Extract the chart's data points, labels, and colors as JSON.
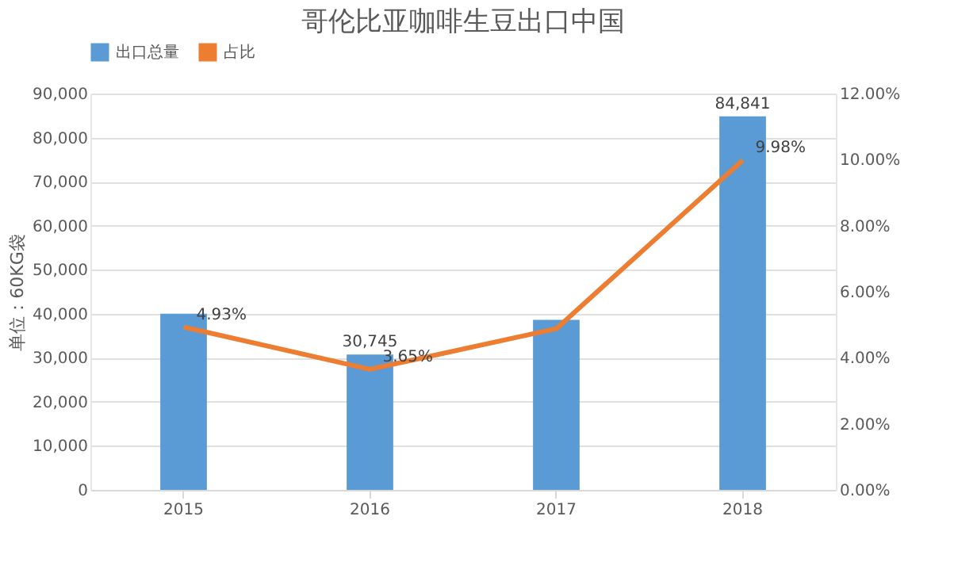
{
  "chart_data": {
    "type": "bar",
    "title": "哥伦比亚咖啡生豆出口中国",
    "ylabel": "单位：60KG袋",
    "categories": [
      "2015",
      "2016",
      "2017",
      "2018"
    ],
    "series": [
      {
        "name": "出口总量",
        "color": "#5b9bd5",
        "values": [
          40000,
          30745,
          38600,
          84841
        ],
        "value_labels": [
          null,
          "30,745",
          null,
          "84,841"
        ]
      },
      {
        "name": "占比",
        "type": "line",
        "axis": "y2",
        "color": "#ed7d31",
        "values": [
          4.93,
          3.65,
          4.88,
          9.98
        ],
        "value_labels": [
          "4.93%",
          "3.65%",
          null,
          "9.98%"
        ]
      }
    ],
    "ylim": [
      0,
      90000
    ],
    "yticks": [
      0,
      {
        "value": 10000,
        "label": "10,000"
      },
      {
        "value": 20000,
        "label": "20,000"
      },
      {
        "value": 30000,
        "label": "30,000"
      },
      {
        "value": 40000,
        "label": "40,000"
      },
      {
        "value": 50000,
        "label": "50,000"
      },
      {
        "value": 60000,
        "label": "60,000"
      },
      {
        "value": 70000,
        "label": "70,000"
      },
      {
        "value": 80000,
        "label": "80,000"
      },
      {
        "value": 90000,
        "label": "90,000"
      }
    ],
    "y2lim": [
      0,
      12
    ],
    "y2ticks": [
      {
        "value": 0,
        "label": "0.00%"
      },
      {
        "value": 2,
        "label": "2.00%"
      },
      {
        "value": 4,
        "label": "4.00%"
      },
      {
        "value": 6,
        "label": "6.00%"
      },
      {
        "value": 8,
        "label": "8.00%"
      },
      {
        "value": 10,
        "label": "10.00%"
      },
      {
        "value": 12,
        "label": "12.00%"
      }
    ],
    "grid": "y",
    "legend": "top",
    "marker": "none",
    "line_style": "solid"
  }
}
